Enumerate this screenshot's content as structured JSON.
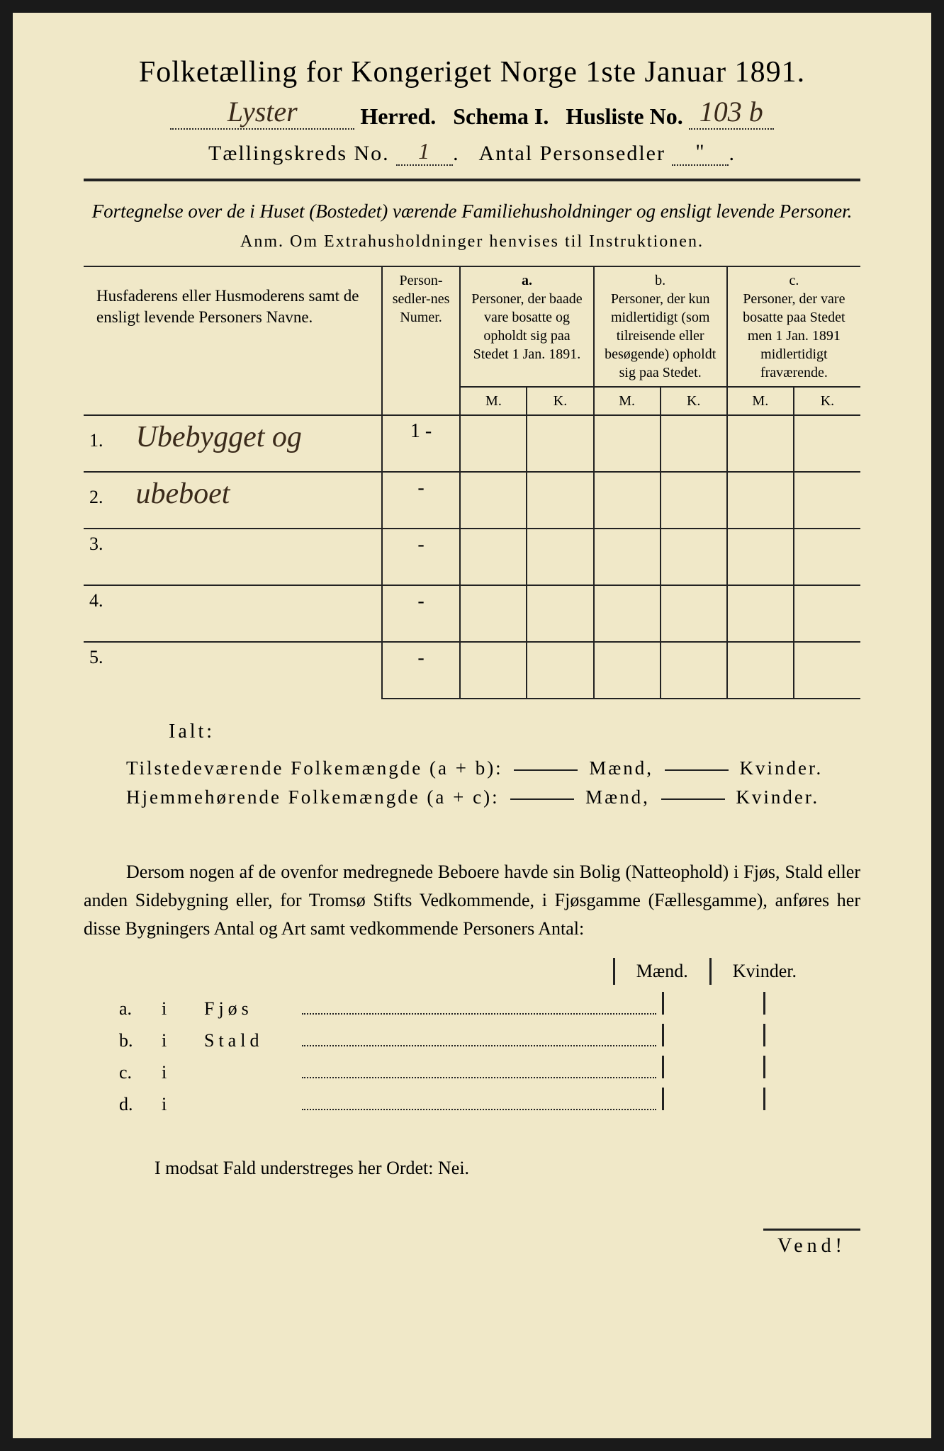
{
  "title": "Folketælling for Kongeriget Norge 1ste Januar 1891.",
  "herred_handwritten": "Lyster",
  "herred_label": "Herred.",
  "schema": "Schema I.",
  "husliste_label": "Husliste No.",
  "husliste_no": "103 b",
  "kreds_label": "Tællingskreds No.",
  "kreds_no": "1",
  "antal_label": "Antal Personsedler",
  "antal_no": "\"",
  "subtitle": "Fortegnelse over de i Huset (Bostedet) værende Familiehusholdninger og ensligt levende Personer.",
  "anm": "Anm.  Om Extrahusholdninger henvises til Instruktionen.",
  "columns": {
    "names": "Husfaderens eller Husmoderens samt de ensligt levende Personers Navne.",
    "numer": "Person-sedler-nes Numer.",
    "a_top": "a.",
    "a": "Personer, der baade vare bosatte og opholdt sig paa Stedet 1 Jan. 1891.",
    "b_top": "b.",
    "b": "Personer, der kun midlertidigt (som tilreisende eller besøgende) opholdt sig paa Stedet.",
    "c_top": "c.",
    "c": "Personer, der vare bosatte paa Stedet men 1 Jan. 1891 midlertidigt fraværende.",
    "M": "M.",
    "K": "K."
  },
  "rows": [
    {
      "n": "1.",
      "name": "Ubebygget og",
      "num": "1 -"
    },
    {
      "n": "2.",
      "name": "ubeboet",
      "num": "-"
    },
    {
      "n": "3.",
      "name": "",
      "num": "-"
    },
    {
      "n": "4.",
      "name": "",
      "num": "-"
    },
    {
      "n": "5.",
      "name": "",
      "num": "-"
    }
  ],
  "ialt": "Ialt:",
  "sum1_label": "Tilstedeværende Folkemængde (a + b):",
  "sum2_label": "Hjemmehørende Folkemængde (a + c):",
  "maend": "Mænd,",
  "kvinder": "Kvinder.",
  "para": "Dersom nogen af de ovenfor medregnede Beboere havde sin Bolig (Natteophold) i Fjøs, Stald eller anden Sidebygning eller, for Tromsø Stifts Vedkommende, i Fjøsgamme (Fællesgamme), anføres her disse Bygningers Antal og Art samt vedkommende Personers Antal:",
  "mk_m": "Mænd.",
  "mk_k": "Kvinder.",
  "items": [
    {
      "a": "a.",
      "i": "i",
      "t": "Fjøs"
    },
    {
      "a": "b.",
      "i": "i",
      "t": "Stald"
    },
    {
      "a": "c.",
      "i": "i",
      "t": ""
    },
    {
      "a": "d.",
      "i": "i",
      "t": ""
    }
  ],
  "nei": "I modsat Fald understreges her Ordet: Nei.",
  "vend": "Vend!"
}
